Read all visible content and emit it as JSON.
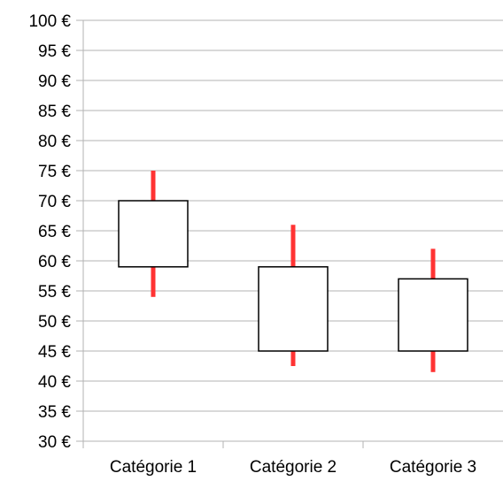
{
  "chart_data": {
    "type": "candlestick",
    "title": "",
    "xlabel": "",
    "ylabel": "",
    "ylim": [
      30,
      100
    ],
    "ytick_step": 5,
    "ytick_labels": [
      "30 €",
      "35 €",
      "40 €",
      "45 €",
      "50 €",
      "55 €",
      "60 €",
      "65 €",
      "70 €",
      "75 €",
      "80 €",
      "85 €",
      "90 €",
      "95 €",
      "100 €"
    ],
    "categories": [
      "Catégorie 1",
      "Catégorie 2",
      "Catégorie 3"
    ],
    "series": [
      {
        "low": [
          54,
          42.5,
          41.5
        ],
        "open": [
          59,
          59,
          57
        ],
        "close": [
          70,
          45,
          45
        ],
        "high": [
          75,
          66,
          62
        ]
      }
    ],
    "grid": true,
    "legend": "none",
    "colors": {
      "whisker": "#ff3333",
      "box_fill": "#ffffff",
      "box_stroke": "#000000",
      "grid": "#b3b3b3",
      "axis": "#b3b3b3"
    }
  }
}
